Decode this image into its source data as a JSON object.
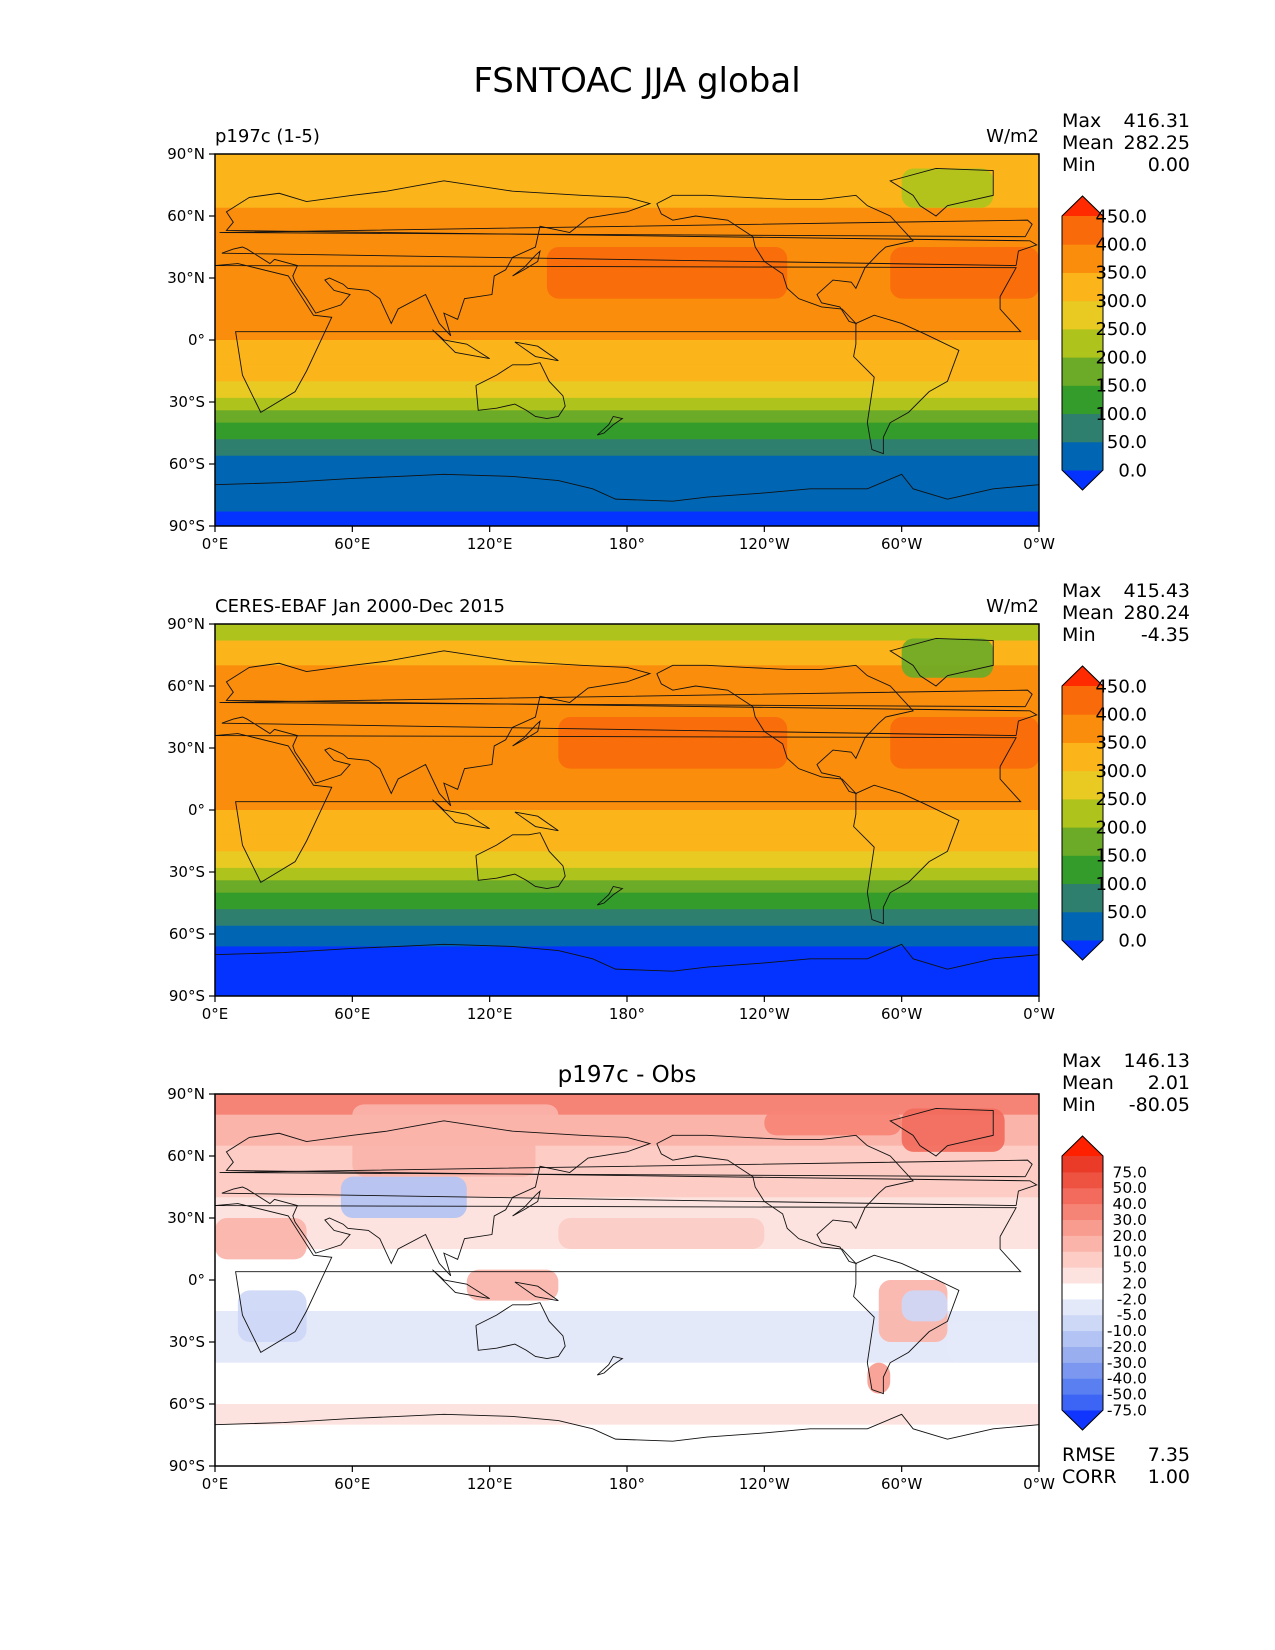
{
  "figure": {
    "title": "FSNTOAC JJA global"
  },
  "ticks": {
    "lon_labels": [
      "0°E",
      "60°E",
      "120°E",
      "180°",
      "120°W",
      "60°W",
      "0°W"
    ],
    "lat_labels": [
      "90°N",
      "60°N",
      "30°N",
      "0°",
      "30°S",
      "60°S",
      "90°S"
    ]
  },
  "stat_labels": {
    "max": "Max",
    "mean": "Mean",
    "min": "Min",
    "rmse": "RMSE",
    "corr": "CORR"
  },
  "colors": {
    "field_levels": [
      "#0433ff",
      "#0066b3",
      "#2f7f6e",
      "#339c2b",
      "#6cab27",
      "#aec41c",
      "#e8ca22",
      "#fbb51b",
      "#fa8d0c",
      "#f96a0b",
      "#ff2a00"
    ],
    "diff_levels": [
      "#1035ff",
      "#3c64f5",
      "#5a7ff0",
      "#7b97ef",
      "#98aeef",
      "#b3c3f3",
      "#cdd7f6",
      "#e4e9fa",
      "#ffffff",
      "#fde3df",
      "#fcccc5",
      "#fab4aa",
      "#f89c8f",
      "#f68476",
      "#f26b5c",
      "#ee5241",
      "#ea3a28",
      "#ff2000"
    ],
    "frame": "#000000"
  },
  "panels": [
    {
      "left_title": "p197c (1-5)",
      "units": "W/m2",
      "stats": {
        "max": "416.31",
        "mean": "282.25",
        "min": "0.00"
      }
    },
    {
      "left_title": "CERES-EBAF Jan 2000-Dec 2015",
      "units": "W/m2",
      "stats": {
        "max": "415.43",
        "mean": "280.24",
        "min": "-4.35"
      }
    },
    {
      "center_title": "p197c - Obs",
      "stats": {
        "max": "146.13",
        "mean": "2.01",
        "min": "-80.05"
      },
      "rmse": "7.35",
      "corr": "1.00"
    }
  ],
  "chart_data": [
    {
      "type": "heatmap",
      "title": "p197c (1-5)",
      "units": "W/m2",
      "x_ticks": [
        "0°E",
        "60°E",
        "120°E",
        "180°",
        "120°W",
        "60°W",
        "0°W"
      ],
      "y_ticks": [
        "90°N",
        "60°N",
        "30°N",
        "0°",
        "30°S",
        "60°S",
        "90°S"
      ],
      "colorbar_levels": [
        "450.0",
        "400.0",
        "350.0",
        "300.0",
        "250.0",
        "200.0",
        "150.0",
        "100.0",
        "50.0",
        "0.0"
      ],
      "lat_bands": [
        {
          "lat": [
            82,
            90
          ],
          "value": 310
        },
        {
          "lat": [
            64,
            82
          ],
          "value": 325
        },
        {
          "lat": [
            54,
            64
          ],
          "value": 350
        },
        {
          "lat": [
            45,
            54
          ],
          "value": 375
        },
        {
          "lat": [
            15,
            45
          ],
          "value": 380
        },
        {
          "lat": [
            0,
            15
          ],
          "value": 360
        },
        {
          "lat": [
            -12,
            0
          ],
          "value": 330
        },
        {
          "lat": [
            -20,
            -12
          ],
          "value": 310
        },
        {
          "lat": [
            -28,
            -20
          ],
          "value": 270
        },
        {
          "lat": [
            -34,
            -28
          ],
          "value": 230
        },
        {
          "lat": [
            -40,
            -34
          ],
          "value": 190
        },
        {
          "lat": [
            -48,
            -40
          ],
          "value": 130
        },
        {
          "lat": [
            -56,
            -48
          ],
          "value": 80
        },
        {
          "lat": [
            -83,
            -56
          ],
          "value": 30
        },
        {
          "lat": [
            -90,
            -83
          ],
          "value": -10
        }
      ],
      "patches": [
        {
          "label": "North Pacific max",
          "lon": [
            145,
            250
          ],
          "lat": [
            20,
            45
          ],
          "value": 420
        },
        {
          "label": "North Atlantic max",
          "lon": [
            295,
            360
          ],
          "lat": [
            20,
            45
          ],
          "value": 420
        },
        {
          "label": "Greenland",
          "lon": [
            300,
            340
          ],
          "lat": [
            64,
            83
          ],
          "value": 240
        }
      ]
    },
    {
      "type": "heatmap",
      "title": "CERES-EBAF Jan 2000-Dec 2015",
      "units": "W/m2",
      "x_ticks": [
        "0°E",
        "60°E",
        "120°E",
        "180°",
        "120°W",
        "60°W",
        "0°W"
      ],
      "y_ticks": [
        "90°N",
        "60°N",
        "30°N",
        "0°",
        "30°S",
        "60°S",
        "90°S"
      ],
      "colorbar_levels": [
        "450.0",
        "400.0",
        "350.0",
        "300.0",
        "250.0",
        "200.0",
        "150.0",
        "100.0",
        "50.0",
        "0.0"
      ],
      "lat_bands": [
        {
          "lat": [
            82,
            90
          ],
          "value": 240
        },
        {
          "lat": [
            70,
            82
          ],
          "value": 310
        },
        {
          "lat": [
            54,
            70
          ],
          "value": 350
        },
        {
          "lat": [
            45,
            54
          ],
          "value": 375
        },
        {
          "lat": [
            15,
            45
          ],
          "value": 380
        },
        {
          "lat": [
            0,
            15
          ],
          "value": 360
        },
        {
          "lat": [
            -12,
            0
          ],
          "value": 330
        },
        {
          "lat": [
            -20,
            -12
          ],
          "value": 300
        },
        {
          "lat": [
            -28,
            -20
          ],
          "value": 260
        },
        {
          "lat": [
            -34,
            -28
          ],
          "value": 220
        },
        {
          "lat": [
            -40,
            -34
          ],
          "value": 180
        },
        {
          "lat": [
            -48,
            -40
          ],
          "value": 130
        },
        {
          "lat": [
            -56,
            -48
          ],
          "value": 80
        },
        {
          "lat": [
            -66,
            -56
          ],
          "value": 30
        },
        {
          "lat": [
            -90,
            -66
          ],
          "value": -10
        }
      ],
      "patches": [
        {
          "label": "North Pacific max",
          "lon": [
            150,
            250
          ],
          "lat": [
            20,
            45
          ],
          "value": 420
        },
        {
          "label": "North Atlantic max",
          "lon": [
            295,
            360
          ],
          "lat": [
            20,
            45
          ],
          "value": 420
        },
        {
          "label": "Greenland",
          "lon": [
            300,
            340
          ],
          "lat": [
            64,
            83
          ],
          "value": 170
        }
      ]
    },
    {
      "type": "heatmap",
      "title": "p197c - Obs",
      "x_ticks": [
        "0°E",
        "60°E",
        "120°E",
        "180°",
        "120°W",
        "60°W",
        "0°W"
      ],
      "y_ticks": [
        "90°N",
        "60°N",
        "30°N",
        "0°",
        "30°S",
        "60°S",
        "90°S"
      ],
      "colorbar_levels": [
        "75.0",
        "50.0",
        "40.0",
        "30.0",
        "20.0",
        "10.0",
        "5.0",
        "2.0",
        "-2.0",
        "-5.0",
        "-10.0",
        "-20.0",
        "-30.0",
        "-40.0",
        "-50.0",
        "-75.0"
      ],
      "lat_bands": [
        {
          "lat": [
            80,
            90
          ],
          "value": 30
        },
        {
          "lat": [
            65,
            80
          ],
          "value": 15
        },
        {
          "lat": [
            40,
            65
          ],
          "value": 6
        },
        {
          "lat": [
            15,
            40
          ],
          "value": 3
        },
        {
          "lat": [
            -15,
            15
          ],
          "value": 0
        },
        {
          "lat": [
            -40,
            -15
          ],
          "value": -3
        },
        {
          "lat": [
            -60,
            -40
          ],
          "value": 0
        },
        {
          "lat": [
            -70,
            -60
          ],
          "value": 3
        },
        {
          "lat": [
            -90,
            -70
          ],
          "value": 0
        }
      ],
      "patches": [
        {
          "label": "Central Asia",
          "lon": [
            55,
            110
          ],
          "lat": [
            30,
            50
          ],
          "value": -12
        },
        {
          "label": "Arctic Asia",
          "lon": [
            60,
            150
          ],
          "lat": [
            75,
            85
          ],
          "value": 10
        },
        {
          "label": "Greenland",
          "lon": [
            300,
            345
          ],
          "lat": [
            62,
            83
          ],
          "value": 45
        },
        {
          "label": "Canadian Archipelago",
          "lon": [
            240,
            300
          ],
          "lat": [
            70,
            82
          ],
          "value": 35
        },
        {
          "label": "Sahara",
          "lon": [
            0,
            40
          ],
          "lat": [
            10,
            30
          ],
          "value": 15
        },
        {
          "label": "Southern Africa",
          "lon": [
            10,
            40
          ],
          "lat": [
            -30,
            -5
          ],
          "value": -8
        },
        {
          "label": "South America",
          "lon": [
            290,
            320
          ],
          "lat": [
            -30,
            0
          ],
          "value": 12
        },
        {
          "label": "Amazon east",
          "lon": [
            300,
            320
          ],
          "lat": [
            -20,
            -5
          ],
          "value": -6
        },
        {
          "label": "Patagonia",
          "lon": [
            285,
            295
          ],
          "lat": [
            -55,
            -40
          ],
          "value": 20
        },
        {
          "label": "Siberia",
          "lon": [
            60,
            140
          ],
          "lat": [
            50,
            70
          ],
          "value": 10
        },
        {
          "label": "Indonesia",
          "lon": [
            110,
            150
          ],
          "lat": [
            -10,
            5
          ],
          "value": 12
        },
        {
          "label": "South Atlantic",
          "lon": [
            320,
            360
          ],
          "lat": [
            -40,
            -20
          ],
          "value": -4
        },
        {
          "label": "Central Pacific",
          "lon": [
            150,
            240
          ],
          "lat": [
            15,
            30
          ],
          "value": 6
        }
      ]
    }
  ]
}
